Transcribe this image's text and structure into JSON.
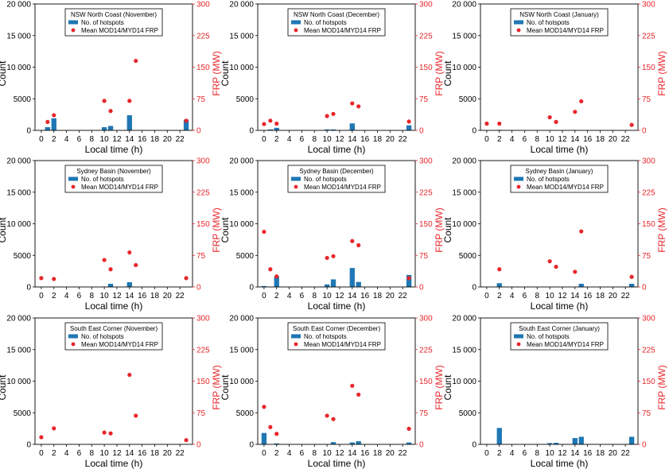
{
  "colors": {
    "bar": "#1f77b4",
    "point": "#e8262b",
    "frp_axis": "#e8262b",
    "axis": "#000000"
  },
  "chart_data": [
    {
      "type": "bar+scatter",
      "title": "NSW North Coast (November)",
      "xlabel": "Local time (h)",
      "ylabel": "Count",
      "y2label": "FRP (MW)",
      "xticks": [
        0,
        2,
        4,
        6,
        8,
        10,
        12,
        14,
        16,
        18,
        20,
        22
      ],
      "yticks": [
        0,
        5000,
        10000,
        15000,
        20000
      ],
      "ytick_labels": [
        "0",
        "5000",
        "10 000",
        "15 000",
        "20 000"
      ],
      "y2ticks": [
        0,
        75,
        150,
        225,
        300
      ],
      "ylim": [
        0,
        20000
      ],
      "y2lim": [
        0,
        300
      ],
      "legend": {
        "bar": "No. of hotspots",
        "point": "Mean MOD14/MYD14 FRP",
        "placement": "top-center"
      },
      "bars": [
        {
          "x": 1,
          "y": 500
        },
        {
          "x": 2,
          "y": 1900
        },
        {
          "x": 10,
          "y": 500
        },
        {
          "x": 11,
          "y": 700
        },
        {
          "x": 14,
          "y": 2400
        },
        {
          "x": 23,
          "y": 1700
        }
      ],
      "points": [
        {
          "x": 1,
          "y": 20
        },
        {
          "x": 2,
          "y": 36
        },
        {
          "x": 10,
          "y": 70
        },
        {
          "x": 11,
          "y": 46
        },
        {
          "x": 14,
          "y": 70
        },
        {
          "x": 15,
          "y": 165
        },
        {
          "x": 23,
          "y": 23
        }
      ]
    },
    {
      "type": "bar+scatter",
      "title": "NSW North Coast (December)",
      "xlabel": "Local time (h)",
      "ylabel": "Count",
      "y2label": "FRP (MW)",
      "xticks": [
        0,
        2,
        4,
        6,
        8,
        10,
        12,
        14,
        16,
        18,
        20,
        22
      ],
      "yticks": [
        0,
        5000,
        10000,
        15000,
        20000
      ],
      "ytick_labels": [
        "0",
        "5000",
        "10 000",
        "15 000",
        "20 000"
      ],
      "y2ticks": [
        0,
        75,
        150,
        225,
        300
      ],
      "ylim": [
        0,
        20000
      ],
      "y2lim": [
        0,
        300
      ],
      "legend": {
        "bar": "No. of hotspots",
        "point": "Mean MOD14/MYD14 FRP",
        "placement": "top-center"
      },
      "bars": [
        {
          "x": 1,
          "y": 150
        },
        {
          "x": 2,
          "y": 400
        },
        {
          "x": 10,
          "y": 150
        },
        {
          "x": 11,
          "y": 150
        },
        {
          "x": 14,
          "y": 1100
        },
        {
          "x": 23,
          "y": 800
        }
      ],
      "points": [
        {
          "x": 0,
          "y": 15
        },
        {
          "x": 1,
          "y": 23
        },
        {
          "x": 2,
          "y": 16
        },
        {
          "x": 10,
          "y": 34
        },
        {
          "x": 11,
          "y": 39
        },
        {
          "x": 14,
          "y": 64
        },
        {
          "x": 15,
          "y": 57
        },
        {
          "x": 23,
          "y": 21
        }
      ]
    },
    {
      "type": "bar+scatter",
      "title": "NSW North Coast (January)",
      "xlabel": "Local time (h)",
      "ylabel": "Count",
      "y2label": "FRP (MW)",
      "xticks": [
        0,
        2,
        4,
        6,
        8,
        10,
        12,
        14,
        16,
        18,
        20,
        22
      ],
      "yticks": [
        0,
        5000,
        10000,
        15000,
        20000
      ],
      "ytick_labels": [
        "0",
        "5000",
        "10 000",
        "15 000",
        "20 000"
      ],
      "y2ticks": [
        0,
        75,
        150,
        225,
        300
      ],
      "ylim": [
        0,
        20000
      ],
      "y2lim": [
        0,
        300
      ],
      "legend": {
        "bar": "No. of hotspots",
        "point": "Mean MOD14/MYD14 FRP",
        "placement": "top-center"
      },
      "bars": [
        {
          "x": 2,
          "y": 80
        },
        {
          "x": 14,
          "y": 60
        }
      ],
      "points": [
        {
          "x": 0,
          "y": 16
        },
        {
          "x": 2,
          "y": 16
        },
        {
          "x": 10,
          "y": 31
        },
        {
          "x": 11,
          "y": 20
        },
        {
          "x": 14,
          "y": 44
        },
        {
          "x": 15,
          "y": 69
        },
        {
          "x": 23,
          "y": 13
        }
      ]
    },
    {
      "type": "bar+scatter",
      "title": "Sydney Basin (November)",
      "xlabel": "Local time (h)",
      "ylabel": "Count",
      "y2label": "FRP (MW)",
      "xticks": [
        0,
        2,
        4,
        6,
        8,
        10,
        12,
        14,
        16,
        18,
        20,
        22
      ],
      "yticks": [
        0,
        5000,
        10000,
        15000,
        20000
      ],
      "ytick_labels": [
        "0",
        "5000",
        "10 000",
        "15 000",
        "20 000"
      ],
      "y2ticks": [
        0,
        75,
        150,
        225,
        300
      ],
      "ylim": [
        0,
        20000
      ],
      "y2lim": [
        0,
        300
      ],
      "legend": {
        "bar": "No. of hotspots",
        "point": "Mean MOD14/MYD14 FRP",
        "placement": "top-center"
      },
      "bars": [
        {
          "x": 11,
          "y": 500
        },
        {
          "x": 14,
          "y": 750
        }
      ],
      "points": [
        {
          "x": 0,
          "y": 21
        },
        {
          "x": 2,
          "y": 19
        },
        {
          "x": 10,
          "y": 64
        },
        {
          "x": 11,
          "y": 42
        },
        {
          "x": 14,
          "y": 82
        },
        {
          "x": 15,
          "y": 52
        },
        {
          "x": 23,
          "y": 21
        }
      ]
    },
    {
      "type": "bar+scatter",
      "title": "Sydney Basin (December)",
      "xlabel": "Local time (h)",
      "ylabel": "Count",
      "y2label": "FRP (MW)",
      "xticks": [
        0,
        2,
        4,
        6,
        8,
        10,
        12,
        14,
        16,
        18,
        20,
        22
      ],
      "yticks": [
        0,
        5000,
        10000,
        15000,
        20000
      ],
      "ytick_labels": [
        "0",
        "5000",
        "10 000",
        "15 000",
        "20 000"
      ],
      "y2ticks": [
        0,
        75,
        150,
        225,
        300
      ],
      "ylim": [
        0,
        20000
      ],
      "y2lim": [
        0,
        300
      ],
      "legend": {
        "bar": "No. of hotspots",
        "point": "Mean MOD14/MYD14 FRP",
        "placement": "top-center"
      },
      "bars": [
        {
          "x": 0,
          "y": 150
        },
        {
          "x": 2,
          "y": 1700
        },
        {
          "x": 10,
          "y": 400
        },
        {
          "x": 11,
          "y": 1200
        },
        {
          "x": 14,
          "y": 3000
        },
        {
          "x": 15,
          "y": 800
        },
        {
          "x": 23,
          "y": 1900
        }
      ],
      "points": [
        {
          "x": 0,
          "y": 131
        },
        {
          "x": 1,
          "y": 42
        },
        {
          "x": 2,
          "y": 25
        },
        {
          "x": 10,
          "y": 69
        },
        {
          "x": 11,
          "y": 73
        },
        {
          "x": 14,
          "y": 109
        },
        {
          "x": 15,
          "y": 99
        },
        {
          "x": 23,
          "y": 21
        }
      ]
    },
    {
      "type": "bar+scatter",
      "title": "Sydney Basin (January)",
      "xlabel": "Local time (h)",
      "ylabel": "Count",
      "y2label": "FRP (MW)",
      "xticks": [
        0,
        2,
        4,
        6,
        8,
        10,
        12,
        14,
        16,
        18,
        20,
        22
      ],
      "yticks": [
        0,
        5000,
        10000,
        15000,
        20000
      ],
      "ytick_labels": [
        "0",
        "5000",
        "10 000",
        "15 000",
        "20 000"
      ],
      "y2ticks": [
        0,
        75,
        150,
        225,
        300
      ],
      "ylim": [
        0,
        20000
      ],
      "y2lim": [
        0,
        300
      ],
      "legend": {
        "bar": "No. of hotspots",
        "point": "Mean MOD14/MYD14 FRP",
        "placement": "top-center"
      },
      "bars": [
        {
          "x": 2,
          "y": 600
        },
        {
          "x": 15,
          "y": 500
        },
        {
          "x": 23,
          "y": 500
        }
      ],
      "points": [
        {
          "x": 2,
          "y": 42
        },
        {
          "x": 10,
          "y": 61
        },
        {
          "x": 11,
          "y": 48
        },
        {
          "x": 14,
          "y": 36
        },
        {
          "x": 15,
          "y": 132
        },
        {
          "x": 23,
          "y": 24
        }
      ]
    },
    {
      "type": "bar+scatter",
      "title": "South East Corner (November)",
      "xlabel": "Local time (h)",
      "ylabel": "Count",
      "y2label": "FRP (MW)",
      "xticks": [
        0,
        2,
        4,
        6,
        8,
        10,
        12,
        14,
        16,
        18,
        20,
        22
      ],
      "yticks": [
        0,
        5000,
        10000,
        15000,
        20000
      ],
      "ytick_labels": [
        "0",
        "5000",
        "10 000",
        "15 000",
        "20 000"
      ],
      "y2ticks": [
        0,
        75,
        150,
        225,
        300
      ],
      "ylim": [
        0,
        20000
      ],
      "y2lim": [
        0,
        300
      ],
      "legend": {
        "bar": "No. of hotspots",
        "point": "Mean MOD14/MYD14 FRP",
        "placement": "top-center"
      },
      "bars": [],
      "points": [
        {
          "x": 0,
          "y": 17
        },
        {
          "x": 2,
          "y": 38
        },
        {
          "x": 10,
          "y": 28
        },
        {
          "x": 11,
          "y": 26
        },
        {
          "x": 14,
          "y": 165
        },
        {
          "x": 15,
          "y": 68
        },
        {
          "x": 23,
          "y": 10
        }
      ]
    },
    {
      "type": "bar+scatter",
      "title": "South East Corner (December)",
      "xlabel": "Local time (h)",
      "ylabel": "Count",
      "y2label": "FRP (MW)",
      "xticks": [
        0,
        2,
        4,
        6,
        8,
        10,
        12,
        14,
        16,
        18,
        20,
        22
      ],
      "yticks": [
        0,
        5000,
        10000,
        15000,
        20000
      ],
      "ytick_labels": [
        "0",
        "5000",
        "10 000",
        "15 000",
        "20 000"
      ],
      "y2ticks": [
        0,
        75,
        150,
        225,
        300
      ],
      "ylim": [
        0,
        20000
      ],
      "y2lim": [
        0,
        300
      ],
      "legend": {
        "bar": "No. of hotspots",
        "point": "Mean MOD14/MYD14 FRP",
        "placement": "top-center"
      },
      "bars": [
        {
          "x": 0,
          "y": 1800
        },
        {
          "x": 2,
          "y": 150
        },
        {
          "x": 11,
          "y": 350
        },
        {
          "x": 14,
          "y": 300
        },
        {
          "x": 15,
          "y": 500
        },
        {
          "x": 23,
          "y": 300
        }
      ],
      "points": [
        {
          "x": 0,
          "y": 89
        },
        {
          "x": 1,
          "y": 41
        },
        {
          "x": 2,
          "y": 25
        },
        {
          "x": 10,
          "y": 68
        },
        {
          "x": 11,
          "y": 60
        },
        {
          "x": 14,
          "y": 139
        },
        {
          "x": 15,
          "y": 118
        },
        {
          "x": 23,
          "y": 37
        }
      ]
    },
    {
      "type": "bar+scatter",
      "title": "South East Corner (January)",
      "xlabel": "Local time (h)",
      "ylabel": "Count",
      "y2label": "FRP (MW)",
      "xticks": [
        0,
        2,
        4,
        6,
        8,
        10,
        12,
        14,
        16,
        18,
        20,
        22
      ],
      "yticks": [
        0,
        5000,
        10000,
        15000,
        20000
      ],
      "ytick_labels": [
        "0",
        "5000",
        "10 000",
        "15 000",
        "20 000"
      ],
      "y2ticks": [
        0,
        75,
        150,
        225,
        300
      ],
      "ylim": [
        0,
        20000
      ],
      "y2lim": [
        0,
        300
      ],
      "legend": {
        "bar": "No. of hotspots",
        "point": "Mean MOD14/MYD14 FRP",
        "placement": "top-center"
      },
      "bars": [
        {
          "x": 2,
          "y": 2600
        },
        {
          "x": 10,
          "y": 200
        },
        {
          "x": 11,
          "y": 250
        },
        {
          "x": 14,
          "y": 1000
        },
        {
          "x": 15,
          "y": 1200
        },
        {
          "x": 23,
          "y": 1200
        }
      ],
      "points": []
    }
  ]
}
